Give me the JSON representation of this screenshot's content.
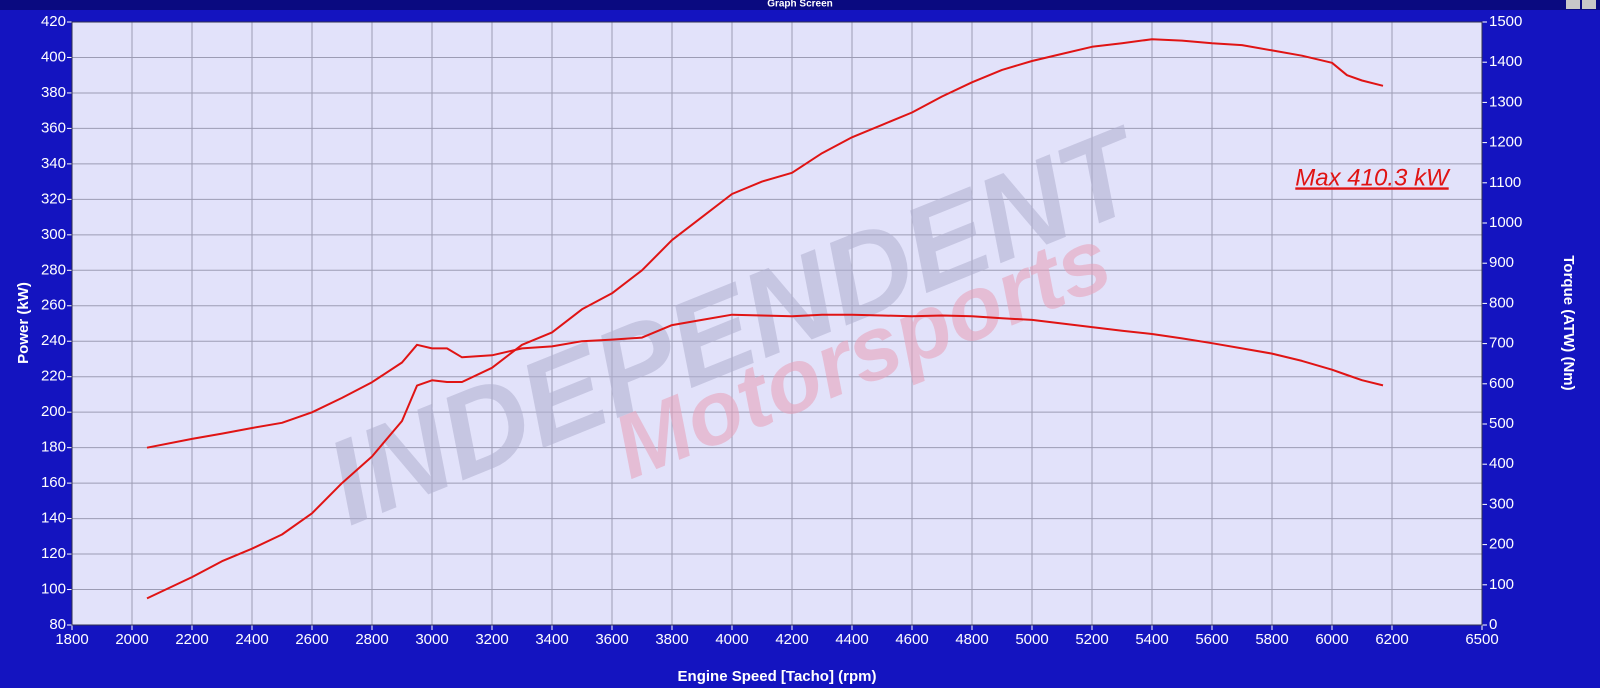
{
  "window_title": "Graph Screen",
  "chart_data": {
    "type": "line",
    "x_label": "Engine Speed [Tacho] (rpm)",
    "y_label": "Power (kW)",
    "y2_label": "Torque (ATW) (Nm)",
    "annotation": "Max 410.3 kW",
    "watermark": [
      "INDEPENDENT",
      "Motorsports"
    ],
    "x": [
      2050,
      2200,
      2300,
      2400,
      2500,
      2600,
      2700,
      2800,
      2900,
      2950,
      3000,
      3050,
      3100,
      3200,
      3300,
      3400,
      3500,
      3600,
      3700,
      3800,
      3900,
      4000,
      4100,
      4200,
      4300,
      4400,
      4500,
      4600,
      4700,
      4800,
      4900,
      5000,
      5100,
      5200,
      5300,
      5400,
      5500,
      5600,
      5700,
      5800,
      5900,
      6000,
      6050,
      6100,
      6170
    ],
    "series": [
      {
        "name": "Power",
        "color": "#e01414",
        "values": [
          95,
          107,
          116,
          123,
          131,
          143,
          160,
          175,
          195,
          215,
          218,
          217,
          217,
          225,
          238,
          245,
          258,
          267,
          280,
          297,
          310,
          323,
          330,
          335,
          346,
          355,
          362,
          369,
          378,
          386,
          393,
          398,
          402,
          406,
          408,
          410.3,
          409.5,
          408,
          407,
          404,
          401,
          397,
          390,
          387,
          384
        ]
      },
      {
        "name": "Torque",
        "color": "#e01414",
        "axis": "y2",
        "values": [
          441,
          463,
          476,
          490,
          503,
          529,
          565,
          604,
          653,
          697,
          688,
          688,
          666,
          671,
          688,
          693,
          706,
          710,
          715,
          746,
          759,
          772,
          770,
          768,
          772,
          772,
          770,
          768,
          770,
          768,
          763,
          759,
          750,
          741,
          732,
          724,
          713,
          701,
          688,
          675,
          657,
          635,
          622,
          609,
          596
        ]
      }
    ],
    "xlim": [
      1800,
      6500
    ],
    "xticks": [
      1800,
      2000,
      2200,
      2400,
      2600,
      2800,
      3000,
      3200,
      3400,
      3600,
      3800,
      4000,
      4200,
      4400,
      4600,
      4800,
      5000,
      5200,
      5400,
      5600,
      5800,
      6000,
      6200,
      6500
    ],
    "ylim": [
      80,
      420
    ],
    "yticks": [
      80,
      100,
      120,
      140,
      160,
      180,
      200,
      220,
      240,
      260,
      280,
      300,
      320,
      340,
      360,
      380,
      400,
      420
    ],
    "y2lim": [
      0,
      1500
    ],
    "y2ticks": [
      0,
      100,
      200,
      300,
      400,
      500,
      600,
      700,
      800,
      900,
      1000,
      1100,
      1200,
      1300,
      1400,
      1500
    ],
    "grid": true
  }
}
